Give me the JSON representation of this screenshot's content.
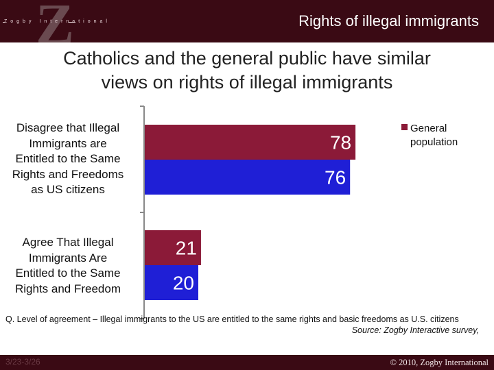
{
  "header": {
    "logo_letter": "Z",
    "logo_text": "Zogby International",
    "title": "Rights of illegal immigrants"
  },
  "slide_title": {
    "line1": "Catholics and the general public have similar",
    "line2": "views on rights of illegal immigrants"
  },
  "colors": {
    "header_bg": "#3a0a14",
    "general_population": "#8b1a38",
    "catholics": "#1f1fd6"
  },
  "chart_data": {
    "type": "bar",
    "orientation": "horizontal",
    "categories": [
      "Disagree that Illegal Immigrants are Entitled to the Same Rights and Freedoms as US citizens",
      "Agree That Illegal Immigrants Are Entitled to the Same Rights and Freedom"
    ],
    "series": [
      {
        "name": "General population",
        "color": "#8b1a38",
        "values": [
          78,
          21
        ]
      },
      {
        "color": "#1f1fd6",
        "values": [
          76,
          20
        ]
      }
    ],
    "xlim": [
      0,
      100
    ],
    "grid": false,
    "legend_position": "top-right"
  },
  "category_labels": [
    [
      "Disagree that Illegal",
      "Immigrants are",
      "Entitled to the Same",
      "Rights and Freedoms",
      "as US citizens"
    ],
    [
      "Agree That Illegal",
      "Immigrants Are",
      "Entitled to the Same",
      "Rights and Freedom"
    ]
  ],
  "legend": {
    "line1": "General",
    "line2": "population"
  },
  "footnote": {
    "question": "Q. Level of agreement – Illegal immigrants to the US are entitled to the same rights and basic freedoms as U.S. citizens",
    "source": "Source: Zogby Interactive survey,"
  },
  "footer": {
    "faint_text": "3/23-3/26",
    "copyright": "© 2010, Zogby International"
  }
}
